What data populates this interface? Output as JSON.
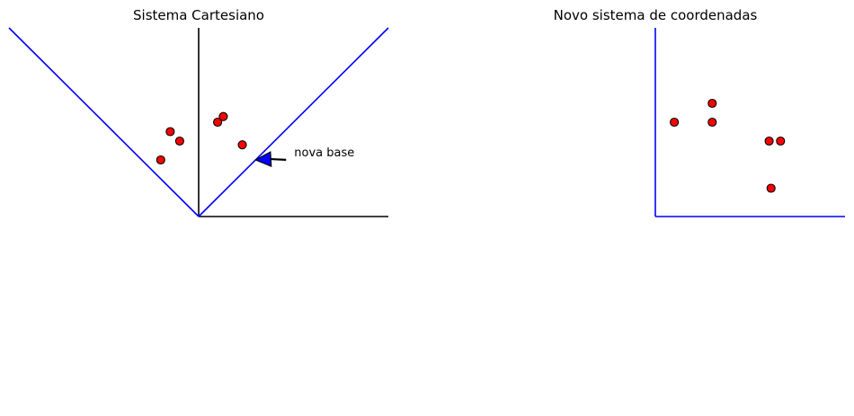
{
  "chart_data": [
    {
      "type": "scatter",
      "title": "Sistema Cartesiano",
      "xlim": [
        -1,
        1
      ],
      "ylim": [
        0,
        1
      ],
      "grid": false,
      "axes": {
        "vertical_axis_x": 0,
        "horizontal_axis_y": 0,
        "color": "#000000"
      },
      "basis_lines": {
        "color": "#0000ff",
        "lines": [
          {
            "name": "diagonal-left",
            "x": [
              -1,
              0
            ],
            "y": [
              1,
              0
            ]
          },
          {
            "name": "diagonal-right",
            "x": [
              0,
              1
            ],
            "y": [
              0,
              1
            ]
          }
        ]
      },
      "points": {
        "color": "#ff0000",
        "edge_color": "#000000",
        "x": [
          -0.2,
          -0.15,
          -0.1,
          0.1,
          0.13,
          0.23
        ],
        "y": [
          0.3,
          0.45,
          0.4,
          0.5,
          0.53,
          0.38
        ]
      },
      "annotation": {
        "text": "nova base",
        "xy": [
          0.3,
          0.3
        ],
        "xytext": [
          0.48,
          0.31
        ],
        "arrow_color": "#0000ff"
      }
    },
    {
      "type": "scatter",
      "title": "Novo sistema de coordenadas",
      "xlim": [
        0,
        1
      ],
      "ylim": [
        0,
        1
      ],
      "grid": false,
      "axes": {
        "color": "#0000ff"
      },
      "points": {
        "color": "#ff0000",
        "edge_color": "#000000",
        "x": [
          0.1,
          0.3,
          0.3,
          0.6,
          0.66,
          0.61
        ],
        "y": [
          0.5,
          0.6,
          0.5,
          0.4,
          0.4,
          0.15
        ]
      }
    }
  ]
}
